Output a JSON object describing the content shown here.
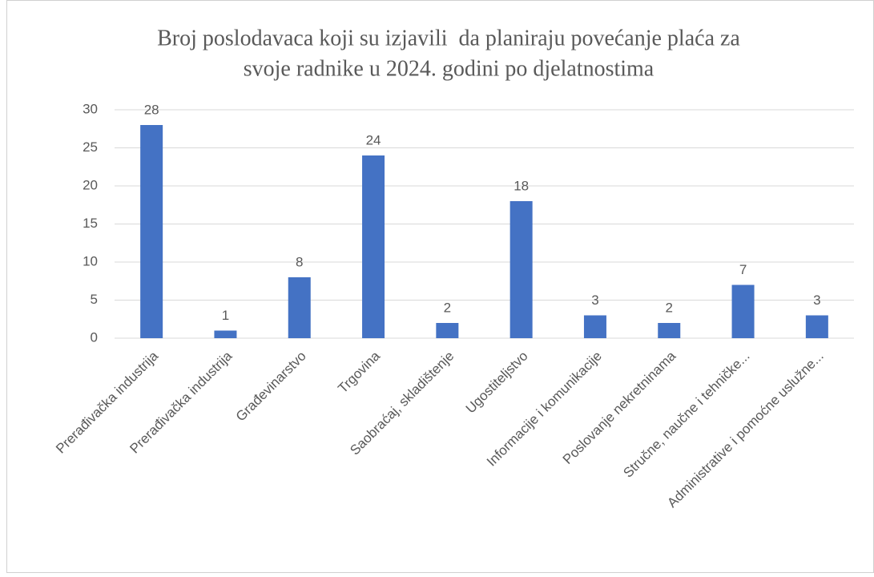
{
  "chart_data": {
    "type": "bar",
    "title": [
      "Broj poslodavaca koji su izjavili  da planiraju povećanje plaća za",
      "svoje radnike u 2024. godini po djelatnostima"
    ],
    "categories": [
      "Prerađivačka industrija",
      "Prerađivačka industrija",
      "Građevinarstvo",
      "Trgovina",
      "Saobraćaj, skladištenje",
      "Ugostiteljstvo",
      "Informacije i komunikacije",
      "Poslovanje nekretninama",
      "Stručne, naučne i tehničke...",
      "Administrative i pomoćne uslužne..."
    ],
    "values": [
      28,
      1,
      8,
      24,
      2,
      18,
      3,
      2,
      7,
      3
    ],
    "color": "#4472c4",
    "ylim": [
      0,
      30
    ],
    "yticks": [
      0,
      5,
      10,
      15,
      20,
      25,
      30
    ],
    "grid": true
  }
}
